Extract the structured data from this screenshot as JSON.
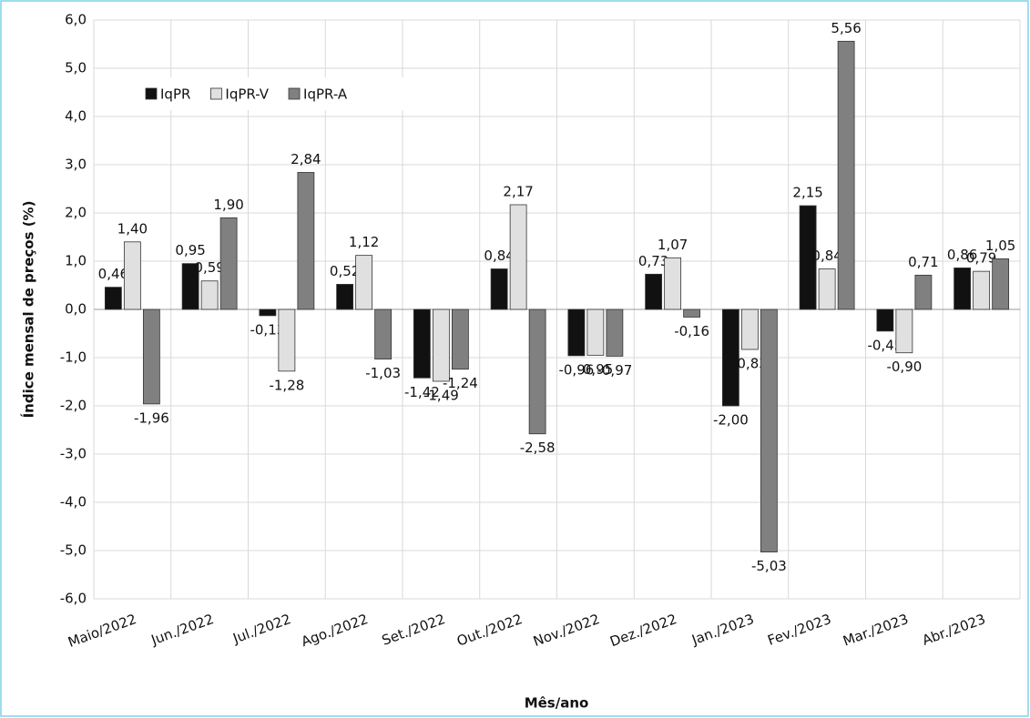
{
  "chart_data": {
    "type": "bar",
    "x_label": "Mês/ano",
    "y_label": "Índice mensal de preços (%)",
    "categories": [
      "Maio/2022",
      "Jun./2022",
      "Jul./2022",
      "Ago./2022",
      "Set./2022",
      "Out./2022",
      "Nov./2022",
      "Dez./2022",
      "Jan./2023",
      "Fev./2023",
      "Mar./2023",
      "Abr./2023"
    ],
    "series": [
      {
        "name": "IqPR",
        "color": "#111111",
        "values": [
          0.46,
          0.95,
          -0.13,
          0.52,
          -1.42,
          0.84,
          -0.96,
          0.73,
          -2.0,
          2.15,
          -0.45,
          0.86
        ],
        "value_labels": [
          "0,46",
          "0,95",
          "-0,13",
          "0,52",
          "-1,42",
          "0,84",
          "-0,96",
          "0,73",
          "-2,00",
          "2,15",
          "-0,45",
          "0,86"
        ]
      },
      {
        "name": "IqPR-V",
        "color": "#e0e0e0",
        "values": [
          1.4,
          0.59,
          -1.28,
          1.12,
          -1.49,
          2.17,
          -0.95,
          1.07,
          -0.83,
          0.84,
          -0.9,
          0.79
        ],
        "value_labels": [
          "1,40",
          "0,59",
          "-1,28",
          "1,12",
          "-1,49",
          "2,17",
          "-0,95",
          "1,07",
          "-0,83",
          "0,84",
          "-0,90",
          "0,79"
        ]
      },
      {
        "name": "IqPR-A",
        "color": "#808080",
        "values": [
          -1.96,
          1.9,
          2.84,
          -1.03,
          -1.24,
          -2.58,
          -0.97,
          -0.16,
          -5.03,
          5.56,
          0.71,
          1.05
        ],
        "value_labels": [
          "-1,96",
          "1,90",
          "2,84",
          "-1,03",
          "-1,24",
          "-2,58",
          "-0,97",
          "-0,16",
          "-5,03",
          "5,56",
          "0,71",
          "1,05"
        ]
      }
    ],
    "ylim": [
      -6,
      6
    ],
    "yticks": [
      {
        "value": -6,
        "label": "-6,0"
      },
      {
        "value": -5,
        "label": "-5,0"
      },
      {
        "value": -4,
        "label": "-4,0"
      },
      {
        "value": -3,
        "label": "-3,0"
      },
      {
        "value": -2,
        "label": "-2,0"
      },
      {
        "value": -1,
        "label": "-1,0"
      },
      {
        "value": 0,
        "label": "0,0"
      },
      {
        "value": 1,
        "label": "1,0"
      },
      {
        "value": 2,
        "label": "2,0"
      },
      {
        "value": 3,
        "label": "3,0"
      },
      {
        "value": 4,
        "label": "4,0"
      },
      {
        "value": 5,
        "label": "5,0"
      },
      {
        "value": 6,
        "label": "6,0"
      }
    ],
    "grid": true,
    "legend": "top-left"
  }
}
